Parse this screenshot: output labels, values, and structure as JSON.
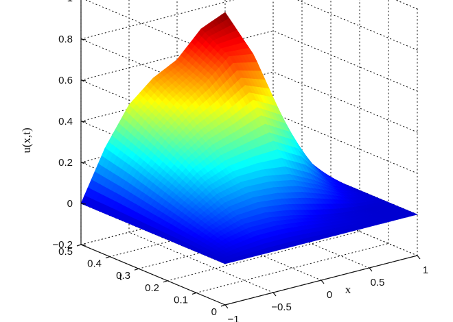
{
  "chart_data": {
    "type": "surface",
    "title": "",
    "xlabel": "x",
    "ylabel": "t",
    "zlabel": "u(x,t)",
    "xlim": [
      -1,
      1
    ],
    "ylim": [
      0,
      0.5
    ],
    "zlim": [
      -0.2,
      1
    ],
    "grid": true,
    "colormap": "jet",
    "x_ticks": [
      "−1",
      "−0.5",
      "0",
      "0.5",
      "1"
    ],
    "x_tick_values": [
      -1,
      -0.5,
      0,
      0.5,
      1
    ],
    "t_ticks": [
      "0",
      "0.1",
      "0.2",
      "0.3",
      "0.4",
      "0.5"
    ],
    "t_tick_values": [
      0,
      0.1,
      0.2,
      0.3,
      0.4,
      0.5
    ],
    "z_ticks": [
      "−0.2",
      "0",
      "0.2",
      "0.4",
      "0.6",
      "0.8",
      "1"
    ],
    "z_tick_values": [
      -0.2,
      0,
      0.2,
      0.4,
      0.6,
      0.8,
      1
    ],
    "surface": {
      "x": [
        -1,
        -0.75,
        -0.5,
        -0.25,
        0,
        0.25,
        0.5,
        0.75,
        1
      ],
      "t": [
        0,
        0.1,
        0.2,
        0.3,
        0.4,
        0.5
      ],
      "u": [
        [
          0,
          0,
          0,
          0,
          0,
          0,
          0,
          0,
          0
        ],
        [
          0,
          0.05,
          0.08,
          0.08,
          0.06,
          0.03,
          0.01,
          0,
          0
        ],
        [
          0,
          0.1,
          0.17,
          0.2,
          0.2,
          0.18,
          0.12,
          0.04,
          0
        ],
        [
          0,
          0.15,
          0.26,
          0.33,
          0.37,
          0.42,
          0.35,
          0.12,
          0
        ],
        [
          0,
          0.2,
          0.34,
          0.44,
          0.52,
          0.62,
          0.6,
          0.2,
          0
        ],
        [
          0,
          0.24,
          0.42,
          0.52,
          0.58,
          0.7,
          0.75,
          0.25,
          0
        ]
      ]
    }
  }
}
